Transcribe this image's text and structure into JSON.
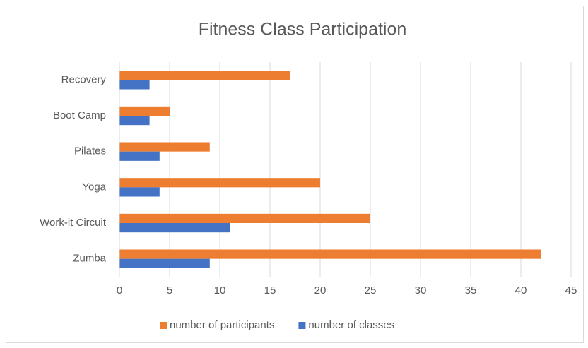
{
  "chart_data": {
    "type": "hbar",
    "title": "Fitness Class Participation",
    "categories": [
      "Zumba",
      "Work-it Circuit",
      "Yoga",
      "Pilates",
      "Boot Camp",
      "Recovery"
    ],
    "series": [
      {
        "name": "number of participants",
        "color": "#ed7d31",
        "values": [
          42,
          25,
          20,
          9,
          5,
          17
        ]
      },
      {
        "name": "number of classes",
        "color": "#4472c4",
        "values": [
          9,
          11,
          4,
          4,
          3,
          3
        ]
      }
    ],
    "xlim": [
      0,
      45
    ],
    "xticks": [
      0,
      5,
      10,
      15,
      20,
      25,
      30,
      35,
      40,
      45
    ],
    "grid": true,
    "legend": "bottom"
  }
}
